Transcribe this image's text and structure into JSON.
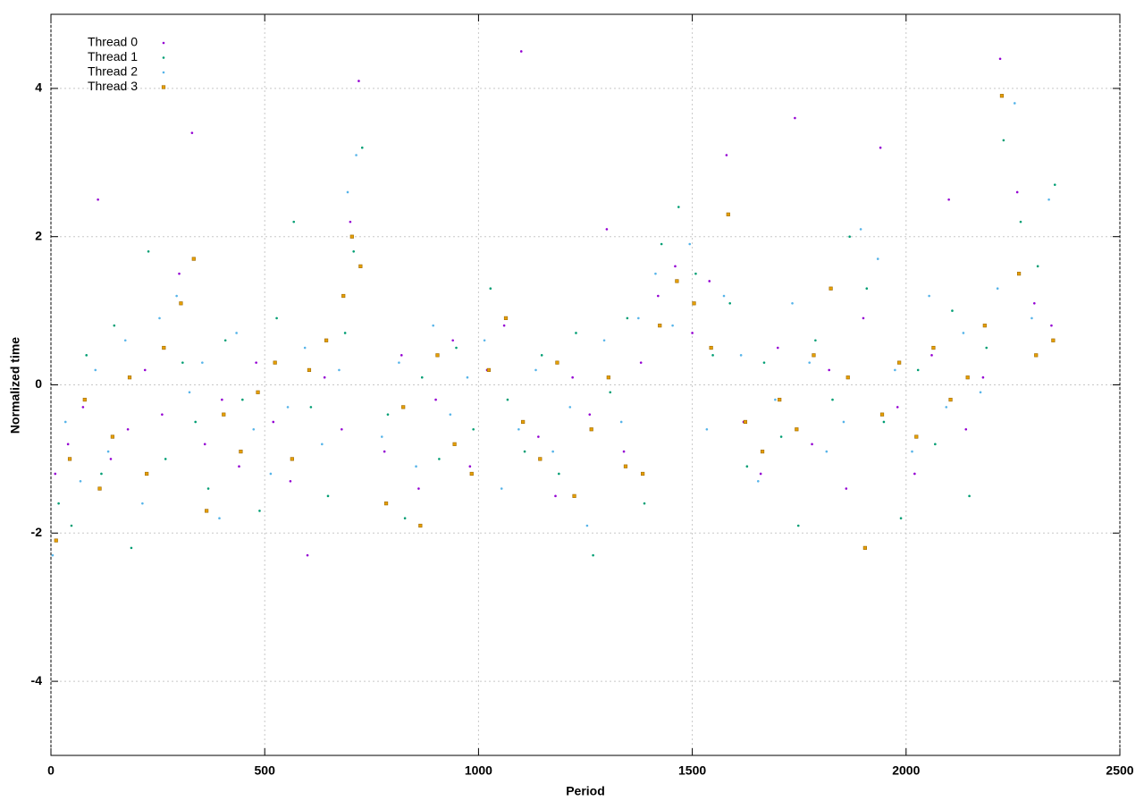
{
  "chart_data": {
    "type": "scatter",
    "xlabel": "Period",
    "ylabel": "Normalized time",
    "xlim": [
      0,
      2500
    ],
    "ylim": [
      -5,
      5
    ],
    "xticks": [
      0,
      500,
      1000,
      1500,
      2000,
      2500
    ],
    "yticks": [
      -4,
      -2,
      0,
      2,
      4
    ],
    "grid": true,
    "legend": "upper left",
    "series": [
      {
        "name": "Thread 0",
        "color": "#9400d3",
        "marker": "dot",
        "x": [
          10,
          40,
          75,
          110,
          140,
          180,
          220,
          260,
          300,
          330,
          360,
          400,
          440,
          480,
          520,
          560,
          600,
          640,
          680,
          700,
          720,
          780,
          820,
          860,
          900,
          940,
          980,
          1020,
          1060,
          1100,
          1140,
          1180,
          1220,
          1260,
          1300,
          1340,
          1380,
          1420,
          1460,
          1500,
          1540,
          1580,
          1620,
          1660,
          1700,
          1740,
          1780,
          1820,
          1860,
          1900,
          1940,
          1980,
          2020,
          2060,
          2100,
          2140,
          2180,
          2220,
          2260,
          2300,
          2340
        ],
        "y": [
          -1.2,
          -0.8,
          -0.3,
          2.5,
          -1.0,
          -0.6,
          0.2,
          -0.4,
          1.5,
          3.4,
          -0.8,
          -0.2,
          -1.1,
          0.3,
          -0.5,
          -1.3,
          -2.3,
          0.1,
          -0.6,
          2.2,
          4.1,
          -0.9,
          0.4,
          -1.4,
          -0.2,
          0.6,
          -1.1,
          0.2,
          0.8,
          4.5,
          -0.7,
          -1.5,
          0.1,
          -0.4,
          2.1,
          -0.9,
          0.3,
          1.2,
          1.6,
          0.7,
          1.4,
          3.1,
          -0.5,
          -1.2,
          0.5,
          3.6,
          -0.8,
          0.2,
          -1.4,
          0.9,
          3.2,
          -0.3,
          -1.2,
          0.4,
          2.5,
          -0.6,
          0.1,
          4.4,
          2.6,
          1.1,
          0.8
        ]
      },
      {
        "name": "Thread 1",
        "color": "#009e73",
        "marker": "dot",
        "x": [
          18,
          48,
          83,
          118,
          148,
          188,
          228,
          268,
          308,
          338,
          368,
          408,
          448,
          488,
          528,
          568,
          608,
          648,
          688,
          708,
          728,
          788,
          828,
          868,
          908,
          948,
          988,
          1028,
          1068,
          1108,
          1148,
          1188,
          1228,
          1268,
          1308,
          1348,
          1388,
          1428,
          1468,
          1508,
          1548,
          1588,
          1628,
          1668,
          1708,
          1748,
          1788,
          1828,
          1868,
          1908,
          1948,
          1988,
          2028,
          2068,
          2108,
          2148,
          2188,
          2228,
          2268,
          2308,
          2348
        ],
        "y": [
          -1.6,
          -1.9,
          0.4,
          -1.2,
          0.8,
          -2.2,
          1.8,
          -1.0,
          0.3,
          -0.5,
          -1.4,
          0.6,
          -0.2,
          -1.7,
          0.9,
          2.2,
          -0.3,
          -1.5,
          0.7,
          1.8,
          3.2,
          -0.4,
          -1.8,
          0.1,
          -1.0,
          0.5,
          -0.6,
          1.3,
          -0.2,
          -0.9,
          0.4,
          -1.2,
          0.7,
          -2.3,
          -0.1,
          0.9,
          -1.6,
          1.9,
          2.4,
          1.5,
          0.4,
          1.1,
          -1.1,
          0.3,
          -0.7,
          -1.9,
          0.6,
          -0.2,
          2.0,
          1.3,
          -0.5,
          -1.8,
          0.2,
          -0.8,
          1.0,
          -1.5,
          0.5,
          3.3,
          2.2,
          1.6,
          2.7
        ]
      },
      {
        "name": "Thread 2",
        "color": "#56b4e9",
        "marker": "dot",
        "x": [
          4,
          34,
          69,
          104,
          134,
          174,
          214,
          254,
          294,
          324,
          354,
          394,
          434,
          474,
          514,
          554,
          594,
          634,
          674,
          694,
          714,
          774,
          814,
          854,
          894,
          934,
          974,
          1014,
          1054,
          1094,
          1134,
          1174,
          1214,
          1254,
          1294,
          1334,
          1374,
          1414,
          1454,
          1494,
          1534,
          1574,
          1614,
          1654,
          1694,
          1734,
          1774,
          1814,
          1854,
          1894,
          1934,
          1974,
          2014,
          2054,
          2094,
          2134,
          2174,
          2214,
          2254,
          2294,
          2334
        ],
        "y": [
          -2.3,
          -0.5,
          -1.3,
          0.2,
          -0.9,
          0.6,
          -1.6,
          0.9,
          1.2,
          -0.1,
          0.3,
          -1.8,
          0.7,
          -0.6,
          -1.2,
          -0.3,
          0.5,
          -0.8,
          0.2,
          2.6,
          3.1,
          -0.7,
          0.3,
          -1.1,
          0.8,
          -0.4,
          0.1,
          0.6,
          -1.4,
          -0.6,
          0.2,
          -0.9,
          -0.3,
          -1.9,
          0.6,
          -0.5,
          0.9,
          1.5,
          0.8,
          1.9,
          -0.6,
          1.2,
          0.4,
          -1.3,
          -0.2,
          1.1,
          0.3,
          -0.9,
          -0.5,
          2.1,
          1.7,
          0.2,
          -0.9,
          1.2,
          -0.3,
          0.7,
          -0.1,
          1.3,
          3.8,
          0.9,
          2.5
        ]
      },
      {
        "name": "Thread 3",
        "color": "#e69f00",
        "marker": "square",
        "x": [
          12,
          44,
          79,
          114,
          144,
          184,
          224,
          264,
          304,
          334,
          364,
          404,
          444,
          484,
          524,
          564,
          604,
          644,
          684,
          704,
          724,
          784,
          824,
          864,
          904,
          944,
          984,
          1024,
          1064,
          1104,
          1144,
          1184,
          1224,
          1264,
          1304,
          1344,
          1384,
          1424,
          1464,
          1504,
          1544,
          1584,
          1624,
          1664,
          1704,
          1744,
          1784,
          1824,
          1864,
          1904,
          1944,
          1984,
          2024,
          2064,
          2104,
          2144,
          2184,
          2224,
          2264,
          2304,
          2344
        ],
        "y": [
          -2.1,
          -1.0,
          -0.2,
          -1.4,
          -0.7,
          0.1,
          -1.2,
          0.5,
          1.1,
          1.7,
          -1.7,
          -0.4,
          -0.9,
          -0.1,
          0.3,
          -1.0,
          0.2,
          0.6,
          1.2,
          2.0,
          1.6,
          -1.6,
          -0.3,
          -1.9,
          0.4,
          -0.8,
          -1.2,
          0.2,
          0.9,
          -0.5,
          -1.0,
          0.3,
          -1.5,
          -0.6,
          0.1,
          -1.1,
          -1.2,
          0.8,
          1.4,
          1.1,
          0.5,
          2.3,
          -0.5,
          -0.9,
          -0.2,
          -0.6,
          0.4,
          1.3,
          0.1,
          -2.2,
          -0.4,
          0.3,
          -0.7,
          0.5,
          -0.2,
          0.1,
          0.8,
          3.9,
          1.5,
          0.4,
          0.6
        ]
      }
    ]
  }
}
